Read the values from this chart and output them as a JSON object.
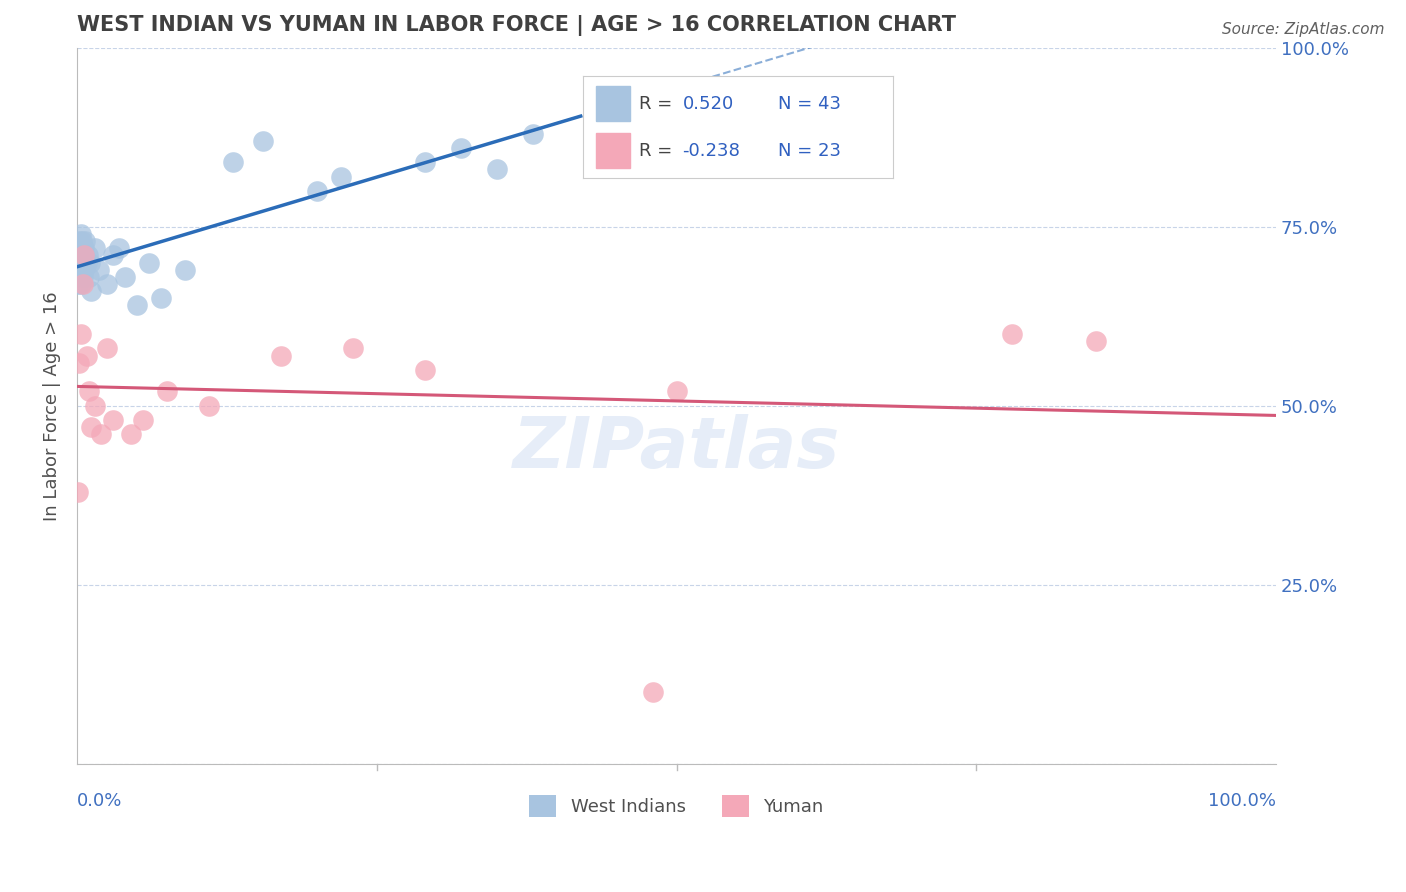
{
  "title": "WEST INDIAN VS YUMAN IN LABOR FORCE | AGE > 16 CORRELATION CHART",
  "source": "Source: ZipAtlas.com",
  "ylabel": "In Labor Force | Age > 16",
  "xlim": [
    0.0,
    1.0
  ],
  "ylim": [
    0.0,
    1.0
  ],
  "xticks": [
    0.0,
    0.25,
    0.5,
    0.75,
    1.0
  ],
  "xticklabels": [
    "0.0%",
    "",
    "",
    "",
    "100.0%"
  ],
  "yticks": [
    0.0,
    0.25,
    0.5,
    0.75,
    1.0
  ],
  "yticklabels_right": [
    "",
    "25.0%",
    "50.0%",
    "75.0%",
    "100.0%"
  ],
  "blue_color": "#a8c4e0",
  "blue_line_color": "#2b6cb8",
  "pink_color": "#f4a8b8",
  "pink_line_color": "#d45878",
  "blue_R": 0.52,
  "blue_N": 43,
  "pink_R": -0.238,
  "pink_N": 23,
  "background_color": "#ffffff",
  "grid_color": "#c8d4e8",
  "title_color": "#404040",
  "tick_color": "#4070c0",
  "watermark": "ZIPatlas",
  "blue_scatter_x": [
    0.001,
    0.001,
    0.002,
    0.002,
    0.002,
    0.003,
    0.003,
    0.003,
    0.003,
    0.004,
    0.004,
    0.004,
    0.005,
    0.005,
    0.005,
    0.006,
    0.006,
    0.006,
    0.007,
    0.007,
    0.008,
    0.009,
    0.01,
    0.011,
    0.012,
    0.015,
    0.018,
    0.025,
    0.03,
    0.035,
    0.04,
    0.05,
    0.06,
    0.07,
    0.09,
    0.13,
    0.155,
    0.2,
    0.22,
    0.29,
    0.32,
    0.35,
    0.38
  ],
  "blue_scatter_y": [
    0.67,
    0.69,
    0.68,
    0.71,
    0.73,
    0.67,
    0.7,
    0.72,
    0.74,
    0.69,
    0.71,
    0.73,
    0.68,
    0.7,
    0.72,
    0.69,
    0.71,
    0.72,
    0.7,
    0.73,
    0.7,
    0.71,
    0.68,
    0.7,
    0.66,
    0.72,
    0.69,
    0.67,
    0.71,
    0.72,
    0.68,
    0.64,
    0.7,
    0.65,
    0.69,
    0.84,
    0.87,
    0.8,
    0.82,
    0.84,
    0.86,
    0.83,
    0.88
  ],
  "pink_scatter_x": [
    0.001,
    0.002,
    0.003,
    0.005,
    0.006,
    0.008,
    0.01,
    0.012,
    0.015,
    0.02,
    0.025,
    0.03,
    0.045,
    0.055,
    0.075,
    0.11,
    0.17,
    0.23,
    0.29,
    0.5,
    0.78,
    0.85
  ],
  "pink_scatter_y": [
    0.38,
    0.56,
    0.6,
    0.67,
    0.71,
    0.57,
    0.52,
    0.47,
    0.5,
    0.46,
    0.58,
    0.48,
    0.46,
    0.48,
    0.52,
    0.5,
    0.57,
    0.58,
    0.55,
    0.52,
    0.6,
    0.59
  ],
  "pink_isolated_x": [
    0.48
  ],
  "pink_isolated_y": [
    0.1
  ]
}
